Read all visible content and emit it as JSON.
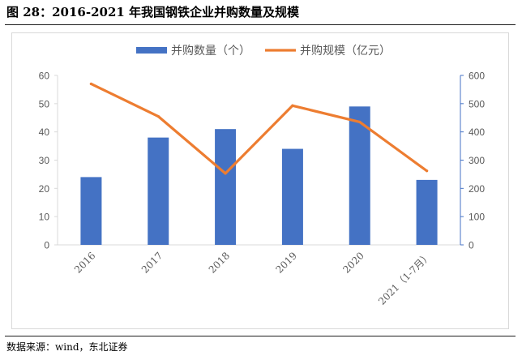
{
  "figure": {
    "title": "图 28：2016-2021 年我国钢铁企业并购数量及规模",
    "source": "数据来源：wind，东北证券"
  },
  "colors": {
    "bar": "#4472c4",
    "line": "#ed7d31",
    "axis": "#d9d9d9",
    "tick_text": "#595959",
    "right_axis": "#4472c4"
  },
  "chart_data": {
    "type": "bar",
    "categories": [
      "2016",
      "2017",
      "2018",
      "2019",
      "2020",
      "2021（1-7月）"
    ],
    "series": [
      {
        "name": "并购数量（个）",
        "type": "bar",
        "axis": "left",
        "values": [
          24,
          38,
          41,
          34,
          49,
          23
        ]
      },
      {
        "name": "并购规模（亿元）",
        "type": "line",
        "axis": "right",
        "values": [
          570,
          455,
          253,
          493,
          435,
          262
        ]
      }
    ],
    "y_left": {
      "min": 0,
      "max": 60,
      "ticks": [
        0,
        10,
        20,
        30,
        40,
        50,
        60
      ]
    },
    "y_right": {
      "min": 0,
      "max": 600,
      "ticks": [
        0,
        100,
        200,
        300,
        400,
        500,
        600
      ]
    },
    "legend_position": "top-center",
    "grid": false
  }
}
